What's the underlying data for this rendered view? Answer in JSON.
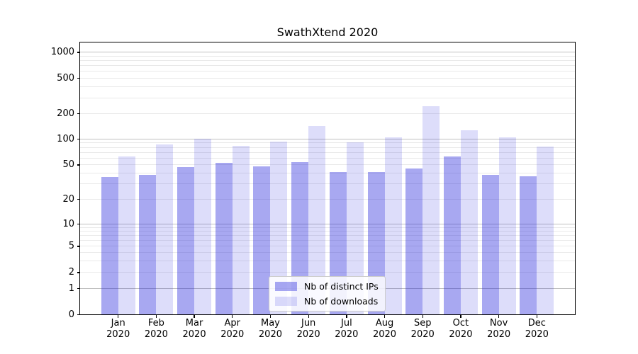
{
  "title": "SwathXtend 2020",
  "chart_data": {
    "type": "bar",
    "title": "SwathXtend 2020",
    "categories": [
      "Jan",
      "Feb",
      "Mar",
      "Apr",
      "May",
      "Jun",
      "Jul",
      "Aug",
      "Sep",
      "Oct",
      "Nov",
      "Dec"
    ],
    "year": "2020",
    "series": [
      {
        "name": "Nb of distinct IPs",
        "color": "rgba(30,30,220,0.39)",
        "values": [
          36,
          38,
          47,
          53,
          48,
          54,
          41,
          41,
          45,
          63,
          38,
          37
        ]
      },
      {
        "name": "Nb of downloads",
        "color": "rgba(30,30,220,0.15)",
        "values": [
          63,
          86,
          100,
          83,
          93,
          142,
          92,
          105,
          243,
          127,
          104,
          81
        ]
      }
    ],
    "xlabel": "",
    "ylabel": "",
    "yscale": "log-with-zero-floor",
    "yticks": [
      0,
      1,
      2,
      5,
      10,
      20,
      50,
      100,
      200,
      500,
      1000
    ],
    "ylim": [
      0,
      1300
    ],
    "grid": true,
    "legend_position": "lower center inside"
  }
}
